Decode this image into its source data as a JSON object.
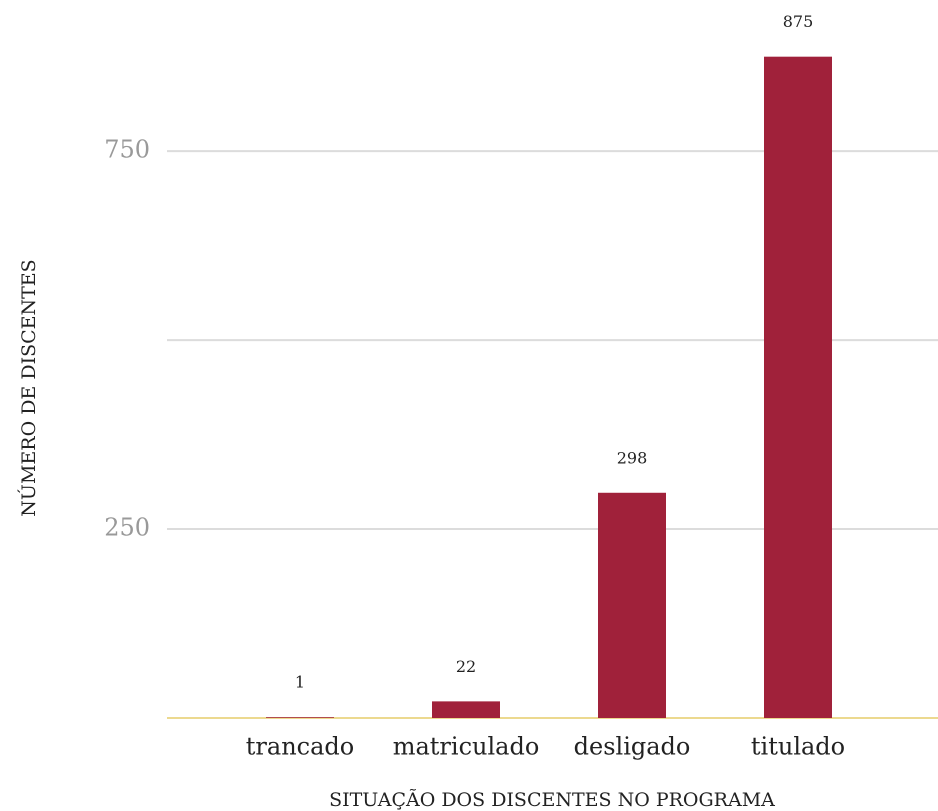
{
  "chart_data": {
    "type": "bar",
    "categories": [
      "trancado",
      "matriculado",
      "desligado",
      "titulado"
    ],
    "values": [
      1,
      22,
      298,
      875
    ],
    "color": "#a0213a",
    "ylim": [
      0,
      950
    ],
    "yticks": [
      250,
      750
    ],
    "ygrid": [
      250,
      500,
      750
    ],
    "xlabel": "SITUAÇÃO DOS DISCENTES NO PROGRAMA",
    "ylabel": "NÚMERO DE DISCENTES",
    "grid": true
  }
}
